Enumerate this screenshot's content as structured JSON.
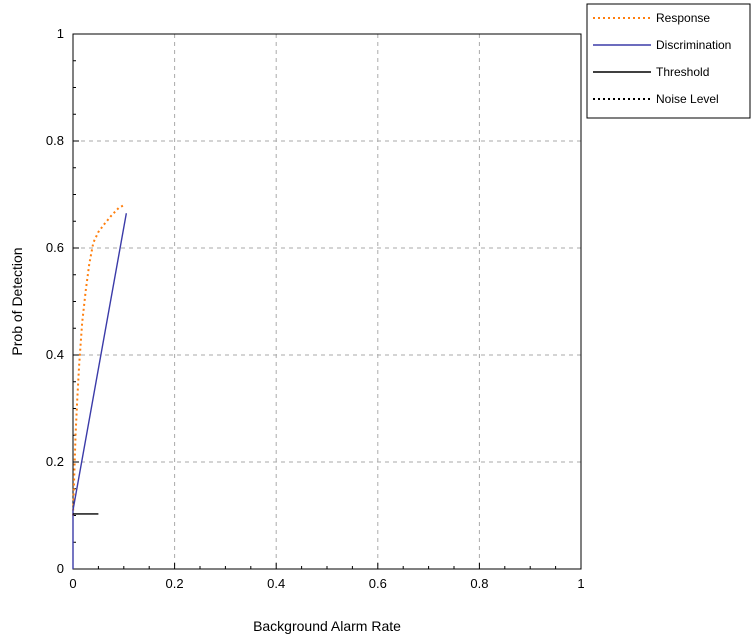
{
  "chart_data": {
    "type": "line",
    "xlabel": "Background Alarm Rate",
    "ylabel": "Prob of Detection",
    "xlim": [
      0,
      1
    ],
    "ylim": [
      0,
      1
    ],
    "xticks": [
      "0",
      "0.2",
      "0.4",
      "0.6",
      "0.8",
      "1"
    ],
    "yticks": [
      "0",
      "0.2",
      "0.4",
      "0.6",
      "0.8",
      "1"
    ],
    "grid": true,
    "legend_position": "top-right, outside plot",
    "series": [
      {
        "name": "Response",
        "color": "#ff7f0e",
        "style": "dotted",
        "x": [
          0.0,
          0.002,
          0.005,
          0.008,
          0.012,
          0.018,
          0.025,
          0.032,
          0.04,
          0.05,
          0.062,
          0.075,
          0.09,
          0.1
        ],
        "y": [
          0.1,
          0.16,
          0.25,
          0.31,
          0.38,
          0.46,
          0.52,
          0.57,
          0.61,
          0.63,
          0.645,
          0.66,
          0.675,
          0.68
        ]
      },
      {
        "name": "Discrimination",
        "color": "#3b3ba8",
        "style": "solid",
        "x": [
          0.0,
          0.0,
          0.105
        ],
        "y": [
          0.0,
          0.11,
          0.665
        ]
      },
      {
        "name": "Threshold",
        "color": "#000000",
        "style": "solid",
        "x": [
          0.0,
          0.05
        ],
        "y": [
          0.103,
          0.103
        ]
      },
      {
        "name": "Noise Level",
        "color": "#000000",
        "style": "dotted",
        "x": [],
        "y": []
      }
    ]
  }
}
